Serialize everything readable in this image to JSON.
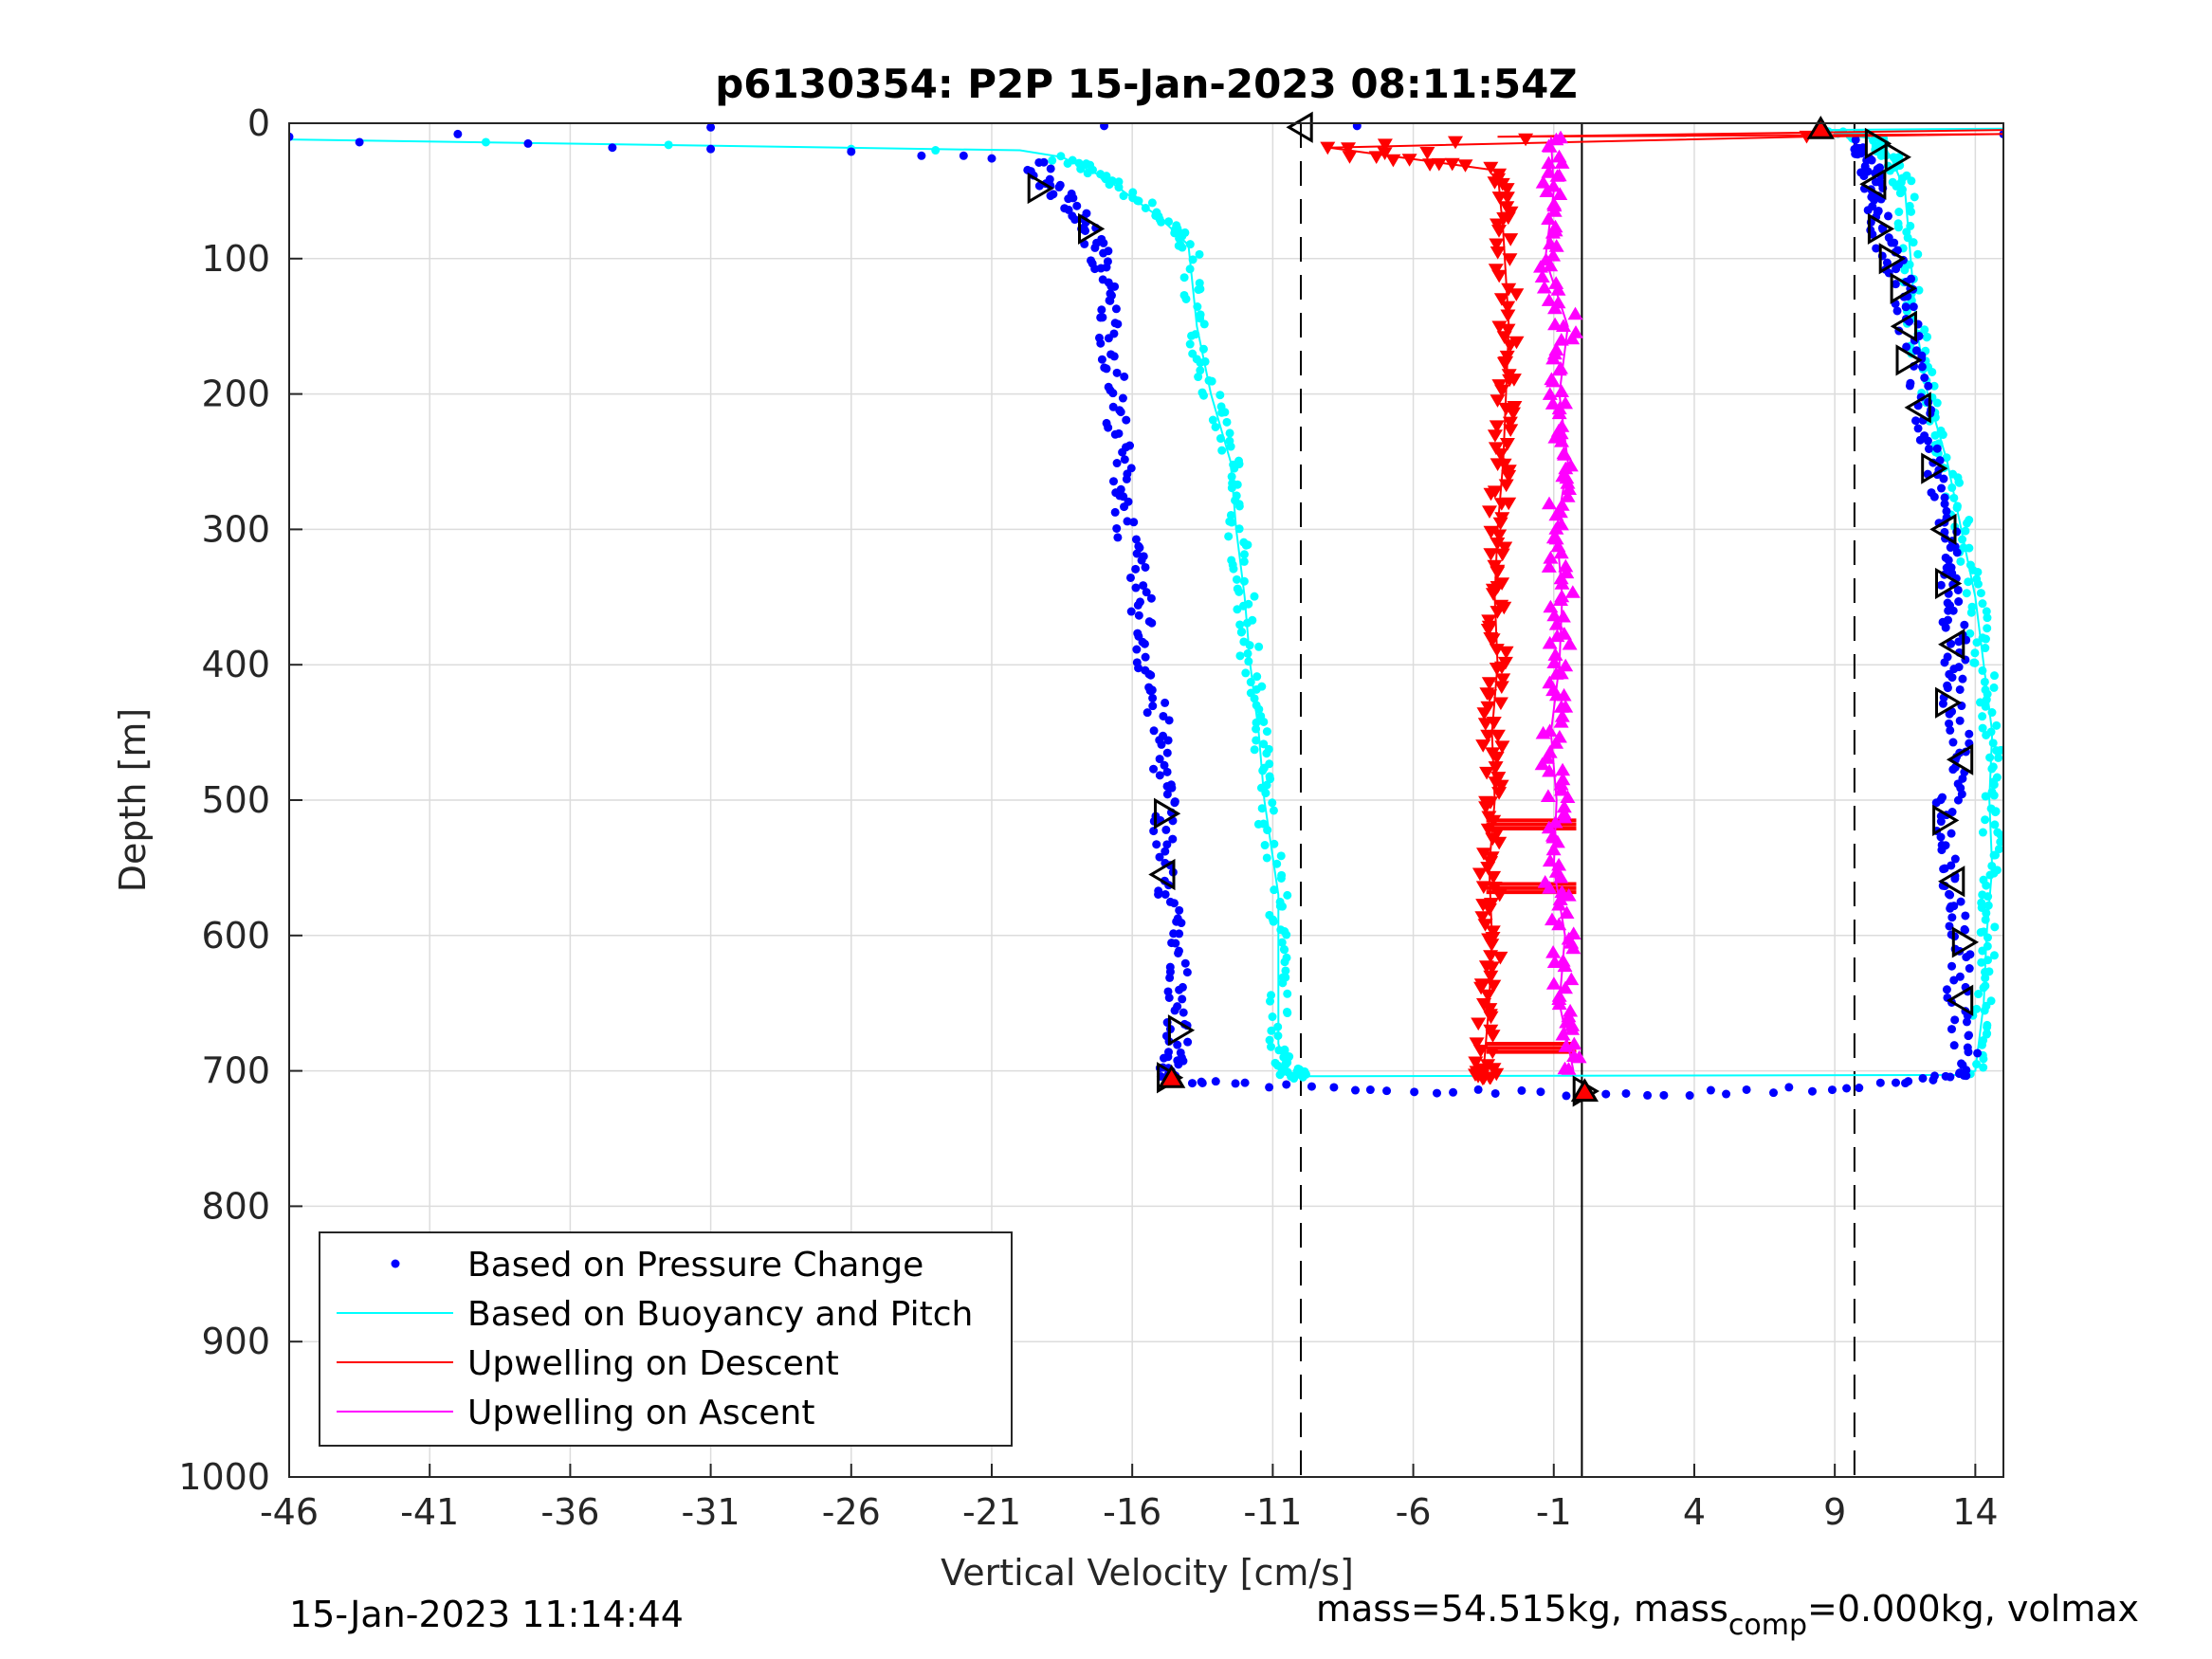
{
  "chart_data": {
    "type": "scatter",
    "title": "p6130354: P2P 15-Jan-2023 08:11:54Z",
    "xlabel": "Vertical Velocity [cm/s]",
    "ylabel": "Depth [m]",
    "xlim": [
      -46,
      15
    ],
    "ylim": [
      0,
      1000
    ],
    "y_reversed": true,
    "grid": true,
    "x_ticks": [
      "-46",
      "-41",
      "-36",
      "-31",
      "-26",
      "-21",
      "-16",
      "-11",
      "-6",
      "-1",
      "4",
      "9",
      "14"
    ],
    "y_ticks": [
      "0",
      "100",
      "200",
      "300",
      "400",
      "500",
      "600",
      "700",
      "800",
      "900",
      "1000"
    ],
    "legend_position": "bottom-left",
    "legend": [
      {
        "label": "Based on Pressure Change",
        "color": "#0000ff",
        "marker": "dot"
      },
      {
        "label": "Based on Buoyancy and Pitch",
        "color": "#00ffff",
        "marker": "line"
      },
      {
        "label": "Upwelling on Descent",
        "color": "#ff0000",
        "marker": "line"
      },
      {
        "label": "Upwelling on Ascent",
        "color": "#ff00ff",
        "marker": "line"
      }
    ],
    "reference_lines": {
      "dashed_x": [
        -10,
        9.7
      ],
      "solid_x": [
        0
      ]
    },
    "series": [
      {
        "name": "Based on Pressure Change",
        "color": "#0000ff",
        "descent": [
          [
            -19.5,
            30
          ],
          [
            -18.5,
            55
          ],
          [
            -17.5,
            80
          ],
          [
            -17,
            110
          ],
          [
            -16.8,
            150
          ],
          [
            -16.6,
            200
          ],
          [
            -16.4,
            250
          ],
          [
            -16.2,
            300
          ],
          [
            -15.7,
            350
          ],
          [
            -15.5,
            400
          ],
          [
            -15,
            450
          ],
          [
            -14.8,
            500
          ],
          [
            -14.9,
            550
          ],
          [
            -14.5,
            600
          ],
          [
            -14.3,
            650
          ],
          [
            -14.5,
            690
          ],
          [
            -14.7,
            705
          ]
        ],
        "ascent": [
          [
            13.8,
            700
          ],
          [
            13.3,
            650
          ],
          [
            13.5,
            600
          ],
          [
            13.2,
            560
          ],
          [
            12.9,
            510
          ],
          [
            13.5,
            470
          ],
          [
            13.2,
            420
          ],
          [
            13.3,
            380
          ],
          [
            13.1,
            340
          ],
          [
            13,
            300
          ],
          [
            12.5,
            250
          ],
          [
            12,
            200
          ],
          [
            11.6,
            150
          ],
          [
            11.3,
            110
          ],
          [
            10.6,
            80
          ],
          [
            10.4,
            50
          ],
          [
            10.3,
            30
          ],
          [
            9.8,
            15
          ]
        ]
      },
      {
        "name": "Based on Buoyancy and Pitch",
        "color": "#00ffff",
        "descent": [
          [
            -46,
            12
          ],
          [
            -20,
            20
          ],
          [
            -18.5,
            25
          ],
          [
            -17,
            40
          ],
          [
            -15,
            70
          ],
          [
            -14,
            90
          ],
          [
            -13.7,
            150
          ],
          [
            -13.2,
            200
          ],
          [
            -12.5,
            250
          ],
          [
            -12.3,
            300
          ],
          [
            -12,
            350
          ],
          [
            -11.8,
            400
          ],
          [
            -11.5,
            450
          ],
          [
            -11.3,
            500
          ],
          [
            -10.8,
            570
          ],
          [
            -10.8,
            620
          ],
          [
            -10.8,
            680
          ],
          [
            -10.5,
            700
          ],
          [
            -10,
            704
          ]
        ],
        "ascent": [
          [
            14,
            700
          ],
          [
            14.3,
            650
          ],
          [
            14.4,
            600
          ],
          [
            14.6,
            550
          ],
          [
            14.5,
            500
          ],
          [
            14.6,
            450
          ],
          [
            14.3,
            400
          ],
          [
            14,
            350
          ],
          [
            13.5,
            300
          ],
          [
            13,
            250
          ],
          [
            12.3,
            200
          ],
          [
            11.9,
            150
          ],
          [
            11.7,
            100
          ],
          [
            11.5,
            50
          ],
          [
            11,
            25
          ],
          [
            10.5,
            12
          ],
          [
            8.5,
            5
          ]
        ]
      },
      {
        "name": "Upwelling on Descent",
        "color": "#ff0000",
        "values": [
          [
            -9,
            20
          ],
          [
            -3,
            35
          ],
          [
            -2.8,
            80
          ],
          [
            -2.6,
            150
          ],
          [
            -2.7,
            200
          ],
          [
            -2.8,
            250
          ],
          [
            -3,
            300
          ],
          [
            -3.1,
            350
          ],
          [
            -3,
            400
          ],
          [
            -3.2,
            450
          ],
          [
            -3.1,
            500
          ],
          [
            -3.3,
            550
          ],
          [
            -3.2,
            600
          ],
          [
            -3.3,
            650
          ],
          [
            -3.5,
            700
          ],
          [
            -3.3,
            705
          ]
        ]
      },
      {
        "name": "Upwelling on Ascent",
        "color": "#ff00ff",
        "values": [
          [
            -0.3,
            700
          ],
          [
            -0.8,
            650
          ],
          [
            -0.6,
            600
          ],
          [
            -1,
            550
          ],
          [
            -0.9,
            500
          ],
          [
            -1.1,
            450
          ],
          [
            -0.8,
            400
          ],
          [
            -0.7,
            350
          ],
          [
            -0.9,
            300
          ],
          [
            -0.5,
            250
          ],
          [
            -0.8,
            200
          ],
          [
            -0.5,
            150
          ],
          [
            -1.3,
            100
          ],
          [
            -1,
            50
          ],
          [
            -1.1,
            10
          ]
        ]
      }
    ],
    "bottom_turn": [
      [
        -14,
        708
      ],
      [
        -12,
        710
      ],
      [
        -9,
        712
      ],
      [
        -6,
        715
      ],
      [
        -3,
        716
      ],
      [
        0,
        717
      ],
      [
        3,
        717
      ],
      [
        6,
        715
      ],
      [
        9,
        713
      ],
      [
        11,
        710
      ],
      [
        12.5,
        706
      ],
      [
        13.5,
        702
      ]
    ],
    "marker_triangles": {
      "open": [
        [
          -10,
          3,
          "left"
        ],
        [
          -19.3,
          48,
          "right"
        ],
        [
          -17.5,
          78,
          "right"
        ],
        [
          -14.8,
          510,
          "right"
        ],
        [
          -14.9,
          555,
          "left"
        ],
        [
          -14.3,
          670,
          "right"
        ],
        [
          -14.7,
          705,
          "right"
        ],
        [
          10.5,
          15,
          "right"
        ],
        [
          11.2,
          25,
          "right"
        ],
        [
          10.4,
          45,
          "left"
        ],
        [
          10.6,
          78,
          "right"
        ],
        [
          11,
          100,
          "right"
        ],
        [
          11.4,
          122,
          "right"
        ],
        [
          11.5,
          150,
          "left"
        ],
        [
          11.6,
          175,
          "right"
        ],
        [
          12,
          210,
          "left"
        ],
        [
          12.5,
          255,
          "right"
        ],
        [
          12.9,
          300,
          "left"
        ],
        [
          13,
          340,
          "right"
        ],
        [
          13.2,
          385,
          "left"
        ],
        [
          13,
          428,
          "right"
        ],
        [
          13.5,
          470,
          "left"
        ],
        [
          12.9,
          515,
          "right"
        ],
        [
          13.2,
          560,
          "left"
        ],
        [
          13.6,
          605,
          "right"
        ],
        [
          13.5,
          648,
          "left"
        ],
        [
          0.1,
          715,
          "right"
        ]
      ],
      "filled": [
        [
          8.5,
          4,
          "up"
        ],
        [
          -14.6,
          705,
          "up"
        ],
        [
          0.1,
          715,
          "up"
        ]
      ]
    }
  },
  "footer": {
    "timestamp": "15-Jan-2023 11:14:44",
    "mass_text_1": "mass=54.515kg, mass",
    "mass_sub": "comp",
    "mass_text_2": "=0.000kg, volmax"
  }
}
